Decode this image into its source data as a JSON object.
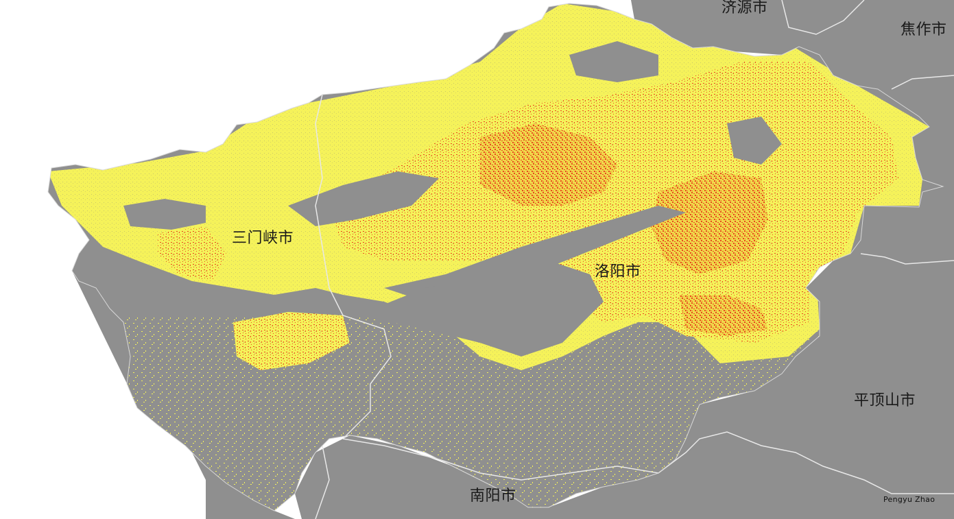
{
  "map": {
    "labels": {
      "jiyuan": "济源市",
      "jiaozuo": "焦作市",
      "sanmenxia": "三门峡市",
      "luoyang": "洛阳市",
      "pingdingshan": "平顶山市",
      "nanyang": "南阳市"
    },
    "credit": "Pengyu  Zhao",
    "colors": {
      "background": "#ffffff",
      "land": "#8f8f8f",
      "boundary": "#e8e8e8",
      "class_low": "#f5f25a",
      "class_high": "#e8451e"
    }
  }
}
